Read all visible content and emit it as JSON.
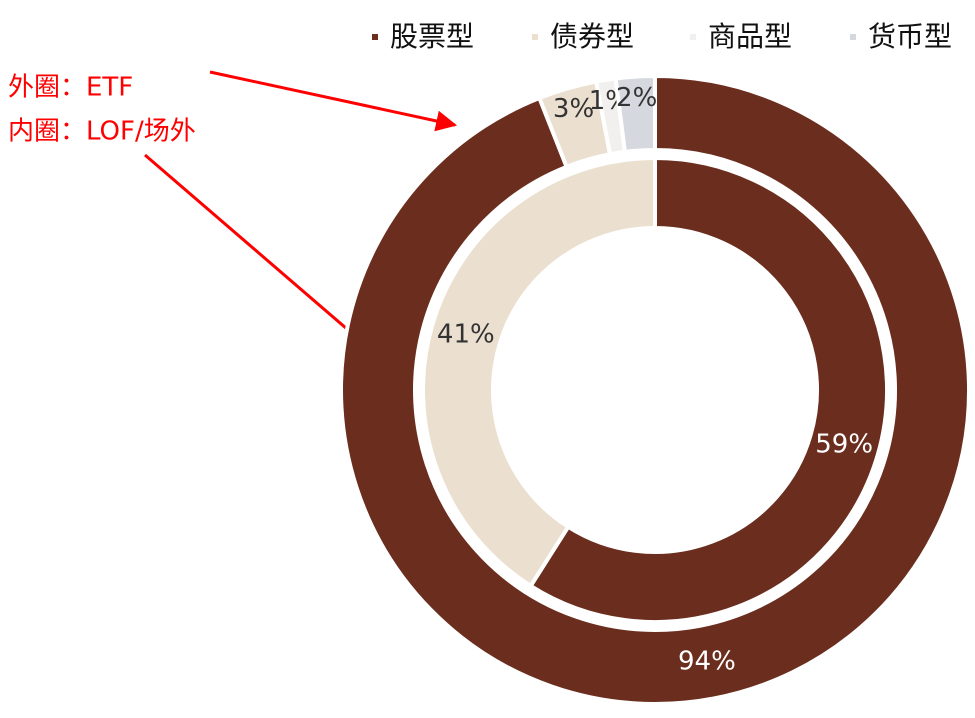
{
  "chart_data": {
    "type": "donut",
    "categories": [
      "股票型",
      "债券型",
      "商品型",
      "货币型"
    ],
    "series": [
      {
        "name": "外圈：ETF",
        "colors": [
          "#6b2d1e",
          "#ebe0d0",
          "#f2f0ee",
          "#d6d8e0"
        ],
        "values": [
          94,
          3,
          1,
          2
        ],
        "value_labels": [
          "94%",
          "3%",
          "1%",
          "2%"
        ]
      },
      {
        "name": "内圈：LOF/场外",
        "colors": [
          "#6b2d1e",
          "#ebe0d0",
          "#f2f0ee",
          "#d6d8e0"
        ],
        "values": [
          59,
          41,
          null,
          null
        ],
        "value_labels": [
          "59%",
          "41%",
          null,
          null
        ]
      }
    ],
    "legend": "top"
  }
}
